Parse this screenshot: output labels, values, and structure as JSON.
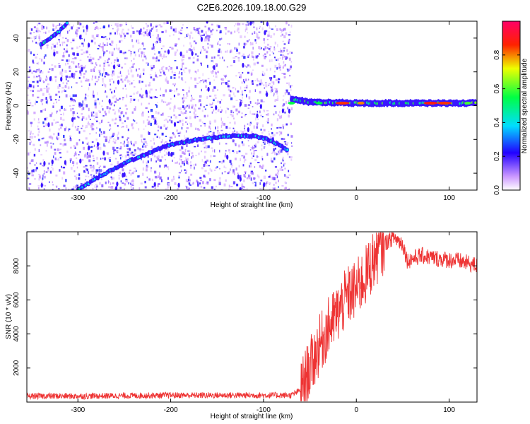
{
  "title": "C2E6.2026.109.18.00.G29",
  "chart_data": [
    {
      "type": "heatmap",
      "xlabel": "Height of straight line (km)",
      "ylabel": "Frequency (Hz)",
      "xlim": [
        -355,
        130
      ],
      "ylim": [
        -50,
        50
      ],
      "xticks": [
        "-300",
        "-200",
        "-100",
        "0",
        "100"
      ],
      "yticks": [
        "-40",
        "-20",
        "0",
        "20",
        "40"
      ],
      "colorbar": {
        "label": "Normalized spectral amplitude",
        "range": [
          0,
          1
        ],
        "ticks": [
          "0.0",
          "0.2",
          "0.4",
          "0.6",
          "0.8"
        ]
      },
      "tracks": [
        {
          "points": [
            [
              -340,
              36
            ],
            [
              -320,
              44
            ],
            [
              -310,
              50
            ]
          ],
          "amplitude": 0.35
        },
        {
          "points": [
            [
              -300,
              -50
            ],
            [
              -280,
              -43
            ],
            [
              -250,
              -34
            ],
            [
              -215,
              -26
            ],
            [
              -200,
              -23
            ],
            [
              -170,
              -20
            ],
            [
              -140,
              -18
            ],
            [
              -110,
              -18
            ],
            [
              -95,
              -20
            ],
            [
              -80,
              -24
            ],
            [
              -73,
              -27
            ]
          ],
          "amplitude": 0.3
        },
        {
          "points": [
            [
              -70,
              4
            ],
            [
              -50,
              2
            ],
            [
              -30,
              2
            ],
            [
              0,
              1.5
            ],
            [
              50,
              1.5
            ],
            [
              100,
              1.5
            ],
            [
              130,
              1.5
            ]
          ],
          "amplitude": 0.5
        }
      ],
      "noise_region": [
        -355,
        -70
      ]
    },
    {
      "type": "line",
      "xlabel": "Height of straight line (km)",
      "ylabel": "SNR (10 * v/v)",
      "xlim": [
        -355,
        130
      ],
      "ylim": [
        0,
        10000
      ],
      "xticks": [
        "-300",
        "-200",
        "-100",
        "0",
        "100"
      ],
      "yticks": [
        "2000",
        "4000",
        "6000",
        "8000"
      ],
      "color": "#ee3333",
      "series": [
        {
          "x": [
            -355,
            -300,
            -200,
            -100,
            -70,
            -60,
            -50,
            -40,
            -30,
            -20,
            -10,
            0,
            10,
            20,
            30,
            40,
            50,
            55,
            70,
            90,
            110,
            130
          ],
          "y": [
            350,
            350,
            400,
            400,
            400,
            700,
            2000,
            3300,
            4400,
            5200,
            6200,
            6600,
            7400,
            8500,
            9300,
            9700,
            9300,
            8300,
            8600,
            8400,
            8300,
            8000
          ]
        }
      ]
    }
  ],
  "colors": {
    "noise": "#9966ee",
    "snr": "#ee3333"
  }
}
